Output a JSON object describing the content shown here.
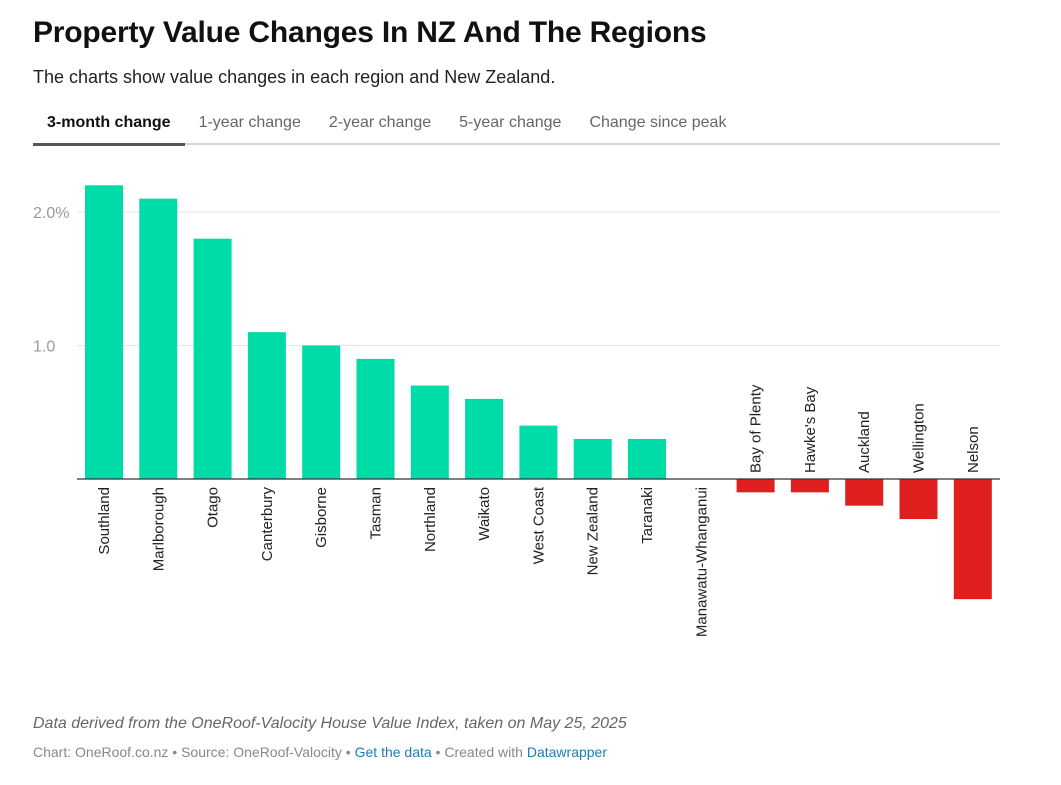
{
  "header": {
    "title": "Property Value Changes In NZ And The Regions",
    "subtitle": "The charts show value changes in each region and New Zealand."
  },
  "tabs": [
    {
      "label": "3-month change",
      "active": true
    },
    {
      "label": "1-year change",
      "active": false
    },
    {
      "label": "2-year change",
      "active": false
    },
    {
      "label": "5-year change",
      "active": false
    },
    {
      "label": "Change since peak",
      "active": false
    }
  ],
  "chart_data": {
    "type": "bar",
    "title": "",
    "xlabel": "",
    "ylabel": "",
    "categories": [
      "Southland",
      "Marlborough",
      "Otago",
      "Canterbury",
      "Gisborne",
      "Tasman",
      "Northland",
      "Waikato",
      "West Coast",
      "New Zealand",
      "Taranaki",
      "Manawatu-Whanganui",
      "Bay of Plenty",
      "Hawke's Bay",
      "Auckland",
      "Wellington",
      "Nelson"
    ],
    "values": [
      2.2,
      2.1,
      1.8,
      1.1,
      1.0,
      0.9,
      0.7,
      0.6,
      0.4,
      0.3,
      0.3,
      0.0,
      -0.1,
      -0.1,
      -0.2,
      -0.3,
      -0.9
    ],
    "ylim": [
      -0.9,
      2.2
    ],
    "yticks": [
      {
        "value": 2.0,
        "label": "2.0%"
      },
      {
        "value": 1.0,
        "label": "1.0"
      }
    ],
    "grid": true,
    "colors": {
      "positive": "#00dca7",
      "negative": "#e0201f"
    }
  },
  "footer": {
    "note": "Data derived from the OneRoof-Valocity House Value Index, taken on May 25, 2025",
    "chart_credit": "Chart: OneRoof.co.nz",
    "separator": " • ",
    "source": "Source: OneRoof-Valocity",
    "get_data": "Get the data",
    "created_with": "Created with",
    "datawrapper": "Datawrapper"
  }
}
